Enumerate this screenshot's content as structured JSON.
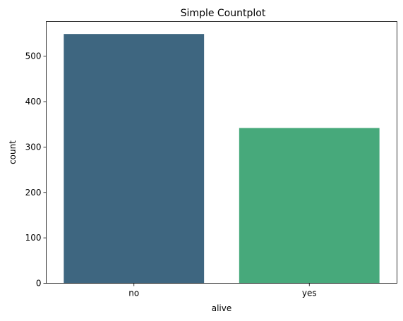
{
  "chart_data": {
    "type": "bar",
    "title": "Simple Countplot",
    "xlabel": "alive",
    "ylabel": "count",
    "categories": [
      "no",
      "yes"
    ],
    "values": [
      549,
      342
    ],
    "colors": [
      "#3e6680",
      "#47a97b"
    ],
    "ylim": [
      0,
      576.45
    ],
    "yticks": [
      0,
      100,
      200,
      300,
      400,
      500
    ],
    "grid": false,
    "legend": "none"
  }
}
